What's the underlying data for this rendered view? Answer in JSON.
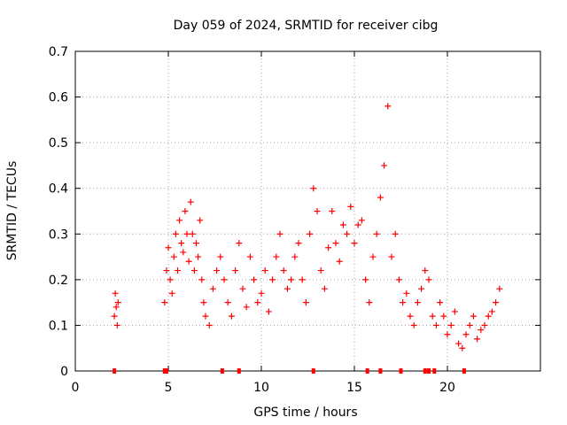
{
  "chart_data": {
    "type": "scatter",
    "title": "Day 059 of 2024, SRMTID for receiver cibg",
    "xlabel": "GPS time / hours",
    "ylabel": "SRMTID / TECUs",
    "xlim": [
      0,
      25
    ],
    "ylim": [
      0,
      0.7
    ],
    "xticks": [
      0,
      5,
      10,
      15,
      20
    ],
    "xtick_labels": [
      "0",
      "5",
      "10",
      "15",
      "20"
    ],
    "yticks": [
      0,
      0.1,
      0.2,
      0.3,
      0.4,
      0.5,
      0.6,
      0.7
    ],
    "ytick_labels": [
      "0",
      "0.1",
      "0.2",
      "0.3",
      "0.4",
      "0.5",
      "0.6",
      "0.7"
    ],
    "grid": true,
    "marker": "+",
    "series": [
      {
        "name": "SRMTID",
        "color": "#ff0000",
        "x": [
          2.1,
          2.15,
          2.2,
          2.25,
          2.3,
          4.8,
          4.9,
          5.0,
          5.1,
          5.2,
          5.3,
          5.4,
          5.5,
          5.6,
          5.7,
          5.8,
          5.9,
          6.0,
          6.1,
          6.2,
          6.3,
          6.4,
          6.5,
          6.6,
          6.7,
          6.8,
          6.9,
          7.0,
          7.2,
          7.4,
          7.6,
          7.8,
          8.0,
          8.2,
          8.4,
          8.6,
          8.8,
          9.0,
          9.2,
          9.4,
          9.6,
          9.8,
          10.0,
          10.2,
          10.4,
          10.6,
          10.8,
          11.0,
          11.2,
          11.4,
          11.6,
          11.8,
          12.0,
          12.2,
          12.4,
          12.6,
          12.8,
          13.0,
          13.2,
          13.4,
          13.6,
          13.8,
          14.0,
          14.2,
          14.4,
          14.6,
          14.8,
          15.0,
          15.2,
          15.4,
          15.6,
          15.8,
          16.0,
          16.2,
          16.4,
          16.6,
          16.8,
          17.0,
          17.2,
          17.4,
          17.6,
          17.8,
          18.0,
          18.2,
          18.4,
          18.6,
          18.8,
          19.0,
          19.2,
          19.4,
          19.6,
          19.8,
          20.0,
          20.2,
          20.4,
          20.6,
          20.8,
          21.0,
          21.2,
          21.4,
          21.6,
          21.8,
          22.0,
          22.2,
          22.4,
          22.6,
          22.8
        ],
        "values": [
          0.12,
          0.17,
          0.14,
          0.1,
          0.15,
          0.15,
          0.22,
          0.27,
          0.2,
          0.17,
          0.25,
          0.3,
          0.22,
          0.33,
          0.28,
          0.26,
          0.35,
          0.3,
          0.24,
          0.37,
          0.3,
          0.22,
          0.28,
          0.25,
          0.33,
          0.2,
          0.15,
          0.12,
          0.1,
          0.18,
          0.22,
          0.25,
          0.2,
          0.15,
          0.12,
          0.22,
          0.28,
          0.18,
          0.14,
          0.25,
          0.2,
          0.15,
          0.17,
          0.22,
          0.13,
          0.2,
          0.25,
          0.3,
          0.22,
          0.18,
          0.2,
          0.25,
          0.28,
          0.2,
          0.15,
          0.3,
          0.4,
          0.35,
          0.22,
          0.18,
          0.27,
          0.35,
          0.28,
          0.24,
          0.32,
          0.3,
          0.36,
          0.28,
          0.32,
          0.33,
          0.2,
          0.15,
          0.25,
          0.3,
          0.38,
          0.45,
          0.58,
          0.25,
          0.3,
          0.2,
          0.15,
          0.17,
          0.12,
          0.1,
          0.15,
          0.18,
          0.22,
          0.2,
          0.12,
          0.1,
          0.15,
          0.12,
          0.08,
          0.1,
          0.13,
          0.06,
          0.05,
          0.08,
          0.1,
          0.12,
          0.07,
          0.09,
          0.1,
          0.12,
          0.13,
          0.15,
          0.18
        ]
      }
    ],
    "baseline_marks_x": [
      2.1,
      4.8,
      4.9,
      7.9,
      8.8,
      12.8,
      15.7,
      16.4,
      17.5,
      18.8,
      19.0,
      19.3,
      20.9
    ]
  }
}
